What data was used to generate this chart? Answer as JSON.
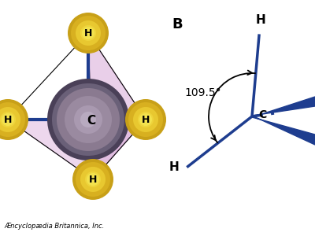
{
  "bg_color": "#ffffff",
  "label_B": "B",
  "label_angle": "109.5°",
  "carbon_label": "C",
  "hydrogen_label": "H",
  "bond_color": "#1e3d8f",
  "atom_carbon_color_center": "#7a6e8a",
  "atom_carbon_color_edge": "#5a5068",
  "atom_hydrogen_color": "#e8c830",
  "atom_hydrogen_color_edge": "#c8a820",
  "tetra_face_color": "#d8a8d8",
  "tetra_face_alpha": 0.55,
  "copyright_text": "Æncyclopædia Britannica, Inc."
}
